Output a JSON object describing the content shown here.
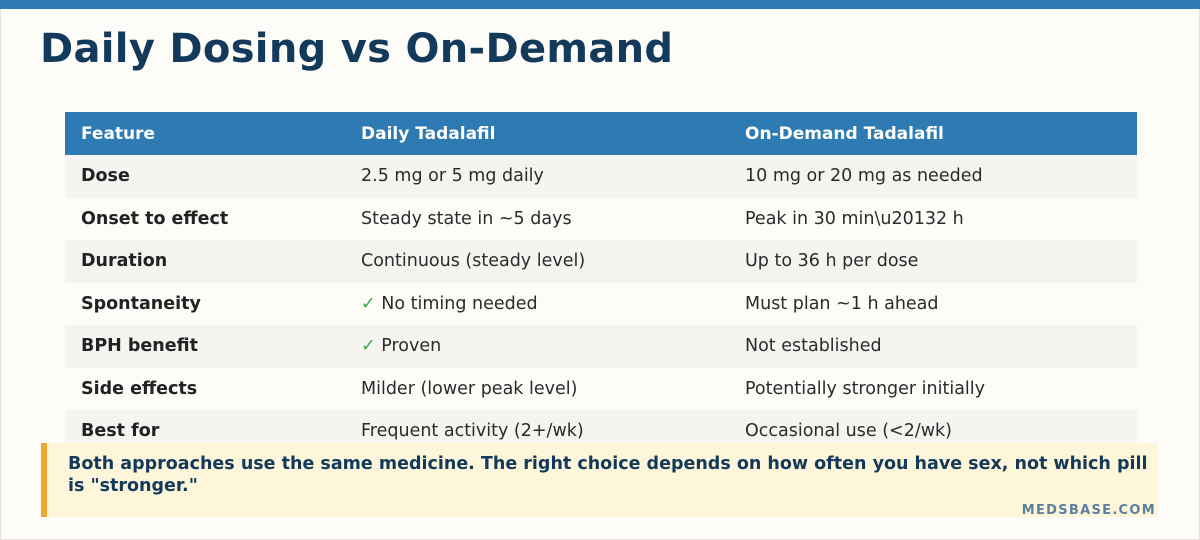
{
  "header": {
    "title": "Daily Dosing vs On-Demand"
  },
  "table": {
    "columns": [
      "Feature",
      "Daily Tadalafil",
      "On-Demand Tadalafil"
    ],
    "rows": [
      [
        "Dose",
        "2.5 mg or 5 mg daily",
        "10 mg or 20 mg as needed"
      ],
      [
        "Onset to effect",
        "Steady state in ~5 days",
        "Peak in 30 min\\u20132 h"
      ],
      [
        "Duration",
        "Continuous (steady level)",
        "Up to 36 h per dose"
      ],
      [
        "Spontaneity",
        "✓ No timing needed",
        "Must plan ~1 h ahead"
      ],
      [
        "BPH benefit",
        "✓ Proven",
        "Not established"
      ],
      [
        "Side effects",
        "Milder (lower peak level)",
        "Potentially stronger initially"
      ],
      [
        "Best for",
        "Frequent activity (2+/wk)",
        "Occasional use (<2/wk)"
      ]
    ]
  },
  "callout": {
    "text": "Both approaches use the same medicine. The right choice depends on how often you have sex, not which pill is \"stronger.\""
  },
  "footer": {
    "brand": "MEDSBASE.COM"
  }
}
